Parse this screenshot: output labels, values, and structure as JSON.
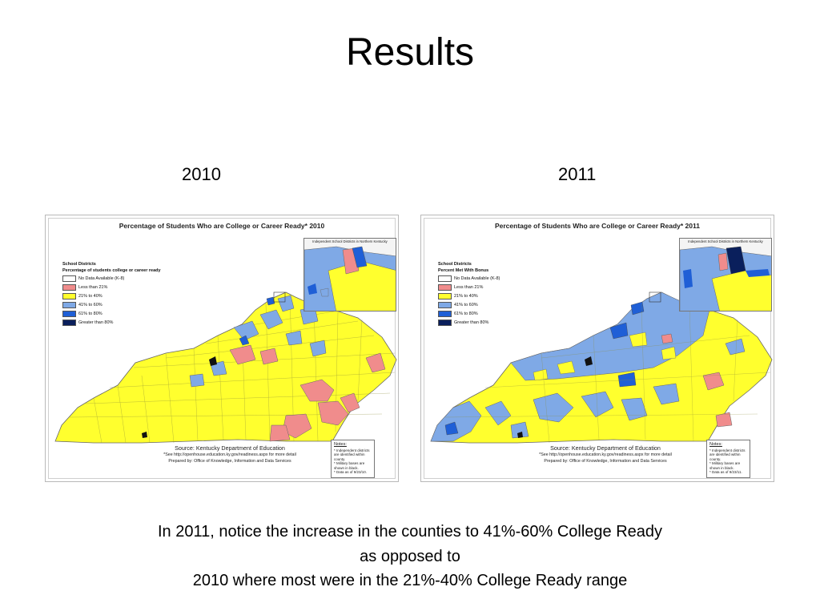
{
  "title": "Results",
  "panels": [
    {
      "year": "2010",
      "map_title": "Percentage of Students Who are College or Career Ready* 2010",
      "legend": {
        "group": "School Districts",
        "heading": "Percentage of students college or career ready",
        "items": [
          {
            "label": "No Data Available (K-8)",
            "color": "#ffffff"
          },
          {
            "label": "Less than 21%",
            "color": "#f08c8c"
          },
          {
            "label": "21% to 40%",
            "color": "#ffff2e"
          },
          {
            "label": "41% to 60%",
            "color": "#7fa9e6"
          },
          {
            "label": "61% to 80%",
            "color": "#1f5fd6"
          },
          {
            "label": "Greater than 80%",
            "color": "#0a1f5c"
          }
        ]
      },
      "inset_title": "Independent School Districts in Northern Kentucky",
      "source": "Source:  Kentucky Department of Education",
      "source_note": "*See http://openhouse.education.ky.gov/readiness.aspx for more detail",
      "prepared_by": "Prepared by:  Office of Knowledge, Information and Data Services",
      "notes_head": "Notes:",
      "notes": [
        "* Independent districts are identified within county.",
        "* Military bases are shown in black.",
        "* Data as of 9/23/10."
      ],
      "dominant_color": "#ffff2e"
    },
    {
      "year": "2011",
      "map_title": "Percentage of Students Who are College or Career Ready* 2011",
      "legend": {
        "group": "School Districts",
        "heading": "Percent Met With Bonus",
        "items": [
          {
            "label": "No Data Available (K-8)",
            "color": "#ffffff"
          },
          {
            "label": "Less than 21%",
            "color": "#f08c8c"
          },
          {
            "label": "21% to 40%",
            "color": "#ffff2e"
          },
          {
            "label": "41% to 60%",
            "color": "#7fa9e6"
          },
          {
            "label": "61% to 80%",
            "color": "#1f5fd6"
          },
          {
            "label": "Greater than 80%",
            "color": "#0a1f5c"
          }
        ]
      },
      "inset_title": "Independent School Districts in Northern Kentucky",
      "source": "Source:  Kentucky Department of Education",
      "source_note": "*See http://openhouse.education.ky.gov/readiness.aspx for more detail",
      "prepared_by": "Prepared by:  Office of Knowledge, Information and Data Services",
      "notes_head": "Notes:",
      "notes": [
        "* Independent districts are identified within county.",
        "* Military bases are shown in black.",
        "* Data as of 9/23/11."
      ],
      "dominant_color": "#ffff2e"
    }
  ],
  "caption": [
    "In 2011, notice the increase in the counties to 41%-60% College Ready",
    "as opposed to",
    "2010 where most were in the 21%-40% College Ready range"
  ]
}
